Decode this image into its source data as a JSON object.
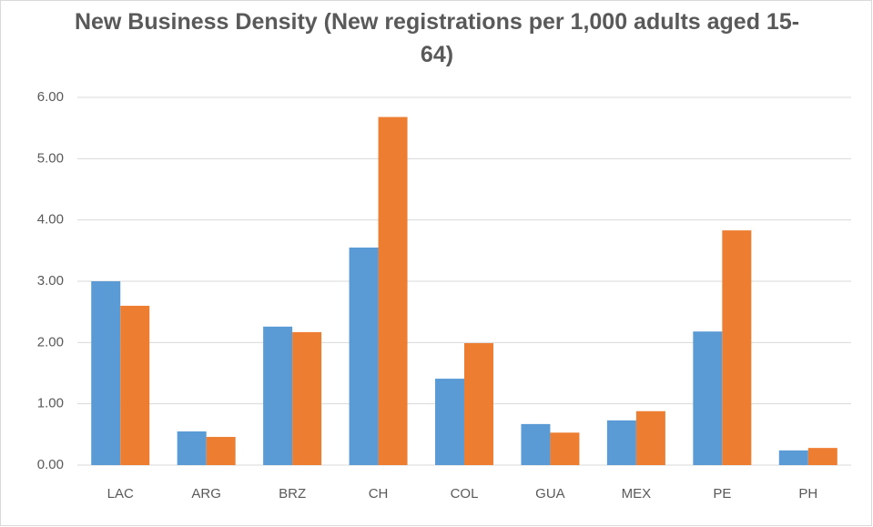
{
  "chart_data": {
    "type": "bar",
    "title": "New Business Density (New registrations per 1,000 adults aged 15-64)",
    "categories": [
      "LAC",
      "ARG",
      "BRZ",
      "CH",
      "COL",
      "GUA",
      "MEX",
      "PE",
      "PH"
    ],
    "series": [
      {
        "color": "#5b9bd5",
        "values": [
          3.0,
          0.55,
          2.26,
          3.55,
          1.41,
          0.67,
          0.73,
          2.18,
          0.24
        ]
      },
      {
        "color": "#ed7d31",
        "values": [
          2.6,
          0.46,
          2.17,
          5.68,
          1.99,
          0.53,
          0.88,
          3.83,
          0.28
        ]
      }
    ],
    "ylim": [
      0,
      6
    ],
    "yticks": [
      {
        "value": 0,
        "label": "0.00"
      },
      {
        "value": 1,
        "label": "1.00"
      },
      {
        "value": 2,
        "label": "2.00"
      },
      {
        "value": 3,
        "label": "3.00"
      },
      {
        "value": 4,
        "label": "4.00"
      },
      {
        "value": 5,
        "label": "5.00"
      },
      {
        "value": 6,
        "label": "6.00"
      }
    ],
    "grid": true
  }
}
